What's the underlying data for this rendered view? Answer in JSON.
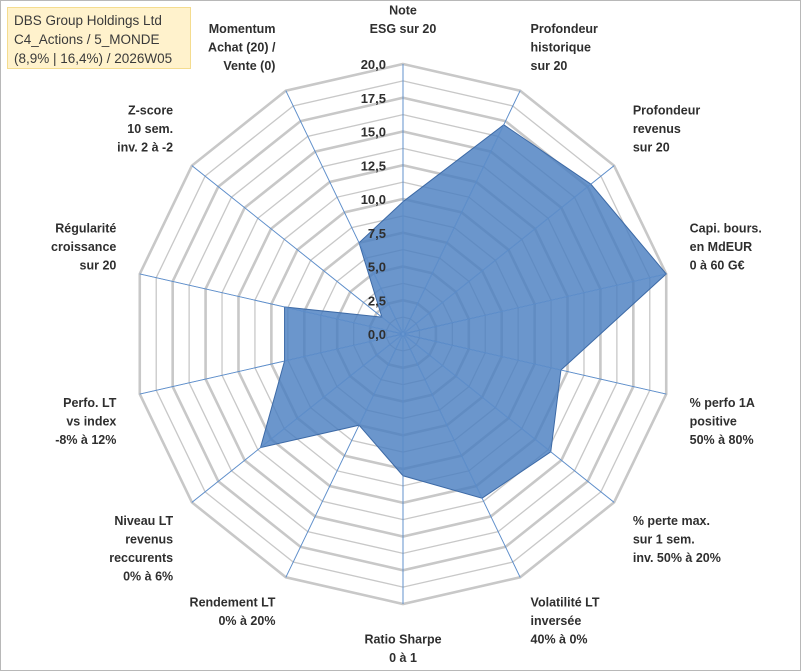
{
  "header": {
    "line1": "DBS Group Holdings Ltd",
    "line2": "C4_Actions / 5_MONDE",
    "line3": "(8,9% | 16,4%) / 2026W05"
  },
  "colors": {
    "fill": "#4a7fc1",
    "fill_opacity": 0.82,
    "stroke": "#3d6aa6",
    "grid": "#c8c8c8",
    "axis": "#4a7fc1"
  },
  "chart_data": {
    "type": "radar",
    "title": "",
    "rmin": 0,
    "rmax": 20,
    "ticks": [
      "0,0",
      "2,5",
      "5,0",
      "7,5",
      "10,0",
      "12,5",
      "15,0",
      "17,5",
      "20,0"
    ],
    "tick_values": [
      0,
      2.5,
      5,
      7.5,
      10,
      12.5,
      15,
      17.5,
      20
    ],
    "categories": [
      [
        "Note",
        "ESG sur 20"
      ],
      [
        "Profondeur",
        "historique",
        "sur 20"
      ],
      [
        "Profondeur",
        "revenus",
        "sur 20"
      ],
      [
        "Capi. bours.",
        "en MdEUR",
        "0 à 60 G€"
      ],
      [
        "% perfo 1A",
        "positive",
        "50% à 80%"
      ],
      [
        "% perte max.",
        "sur 1 sem.",
        "inv. 50% à 20%"
      ],
      [
        "Volatilité LT",
        "inversée",
        "40% à 0%"
      ],
      [
        "Ratio Sharpe",
        "0 à 1"
      ],
      [
        "Rendement LT",
        "0% à 20%"
      ],
      [
        "Niveau LT",
        "revenus",
        "reccurents",
        "0% à 6%"
      ],
      [
        "Perfo. LT",
        "vs index",
        "-8% à 12%"
      ],
      [
        "Régularité",
        "croissance",
        "sur 20"
      ],
      [
        "Z-score",
        "10 sem.",
        "inv. 2 à -2"
      ],
      [
        "Momentum",
        "Achat (20) /",
        "Vente (0)"
      ]
    ],
    "series": [
      {
        "name": "DBS Group Holdings Ltd",
        "values": [
          9.8,
          17.2,
          17.8,
          20.0,
          12.0,
          14.0,
          13.5,
          10.5,
          7.5,
          13.5,
          9.0,
          9.0,
          2.0,
          7.5
        ]
      }
    ]
  }
}
